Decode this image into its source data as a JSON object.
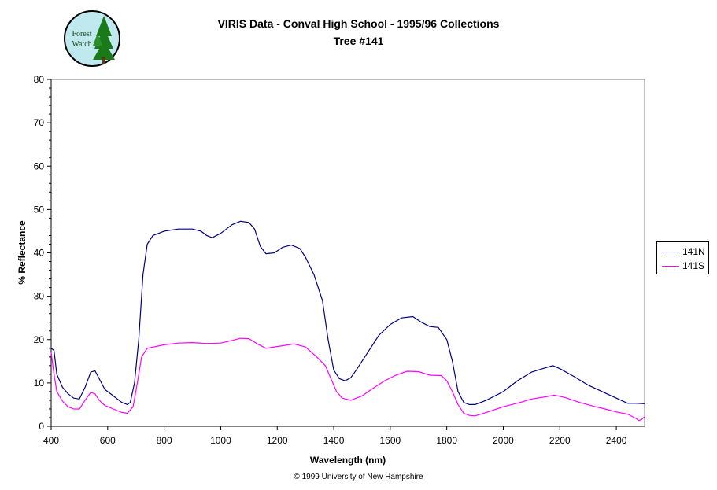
{
  "header": {
    "title_line1": "VIRIS Data - Conval High School - 1995/96 Collections",
    "title_line2": "Tree #141"
  },
  "logo": {
    "text_line1": "Forest",
    "text_line2": "Watch",
    "icon": "tree-icon"
  },
  "footer": {
    "copyright": "© 1999 University of New Hampshire"
  },
  "colors": {
    "series_141N": "#000080",
    "series_141S": "#ff00ff"
  },
  "chart_data": {
    "type": "line",
    "title": "VIRIS Data - Conval High School - 1995/96 Collections",
    "subtitle": "Tree #141",
    "xlabel": "Wavelength (nm)",
    "ylabel": "% Reflectance",
    "xlim": [
      400,
      2500
    ],
    "ylim": [
      0,
      80
    ],
    "xticks": [
      400,
      600,
      800,
      1000,
      1200,
      1400,
      1600,
      1800,
      2000,
      2200,
      2400
    ],
    "yticks": [
      0,
      10,
      20,
      30,
      40,
      50,
      60,
      70,
      80
    ],
    "grid": false,
    "legend_position": "right",
    "series": [
      {
        "name": "141N",
        "color": "#000080",
        "points": [
          [
            400,
            18
          ],
          [
            410,
            17.5
          ],
          [
            420,
            12
          ],
          [
            440,
            9
          ],
          [
            460,
            7.5
          ],
          [
            480,
            6.5
          ],
          [
            500,
            6.3
          ],
          [
            520,
            9
          ],
          [
            540,
            12.5
          ],
          [
            555,
            12.8
          ],
          [
            570,
            11
          ],
          [
            590,
            8.5
          ],
          [
            620,
            7
          ],
          [
            650,
            5.5
          ],
          [
            670,
            5
          ],
          [
            680,
            5.5
          ],
          [
            695,
            10
          ],
          [
            710,
            20
          ],
          [
            725,
            35
          ],
          [
            740,
            42
          ],
          [
            760,
            44
          ],
          [
            800,
            45
          ],
          [
            850,
            45.5
          ],
          [
            900,
            45.5
          ],
          [
            930,
            45
          ],
          [
            950,
            44
          ],
          [
            970,
            43.5
          ],
          [
            1000,
            44.5
          ],
          [
            1040,
            46.5
          ],
          [
            1070,
            47.3
          ],
          [
            1100,
            47
          ],
          [
            1120,
            45.5
          ],
          [
            1140,
            41.5
          ],
          [
            1160,
            39.8
          ],
          [
            1190,
            40
          ],
          [
            1220,
            41.3
          ],
          [
            1250,
            41.8
          ],
          [
            1280,
            41
          ],
          [
            1300,
            39
          ],
          [
            1330,
            35
          ],
          [
            1360,
            29
          ],
          [
            1380,
            20
          ],
          [
            1400,
            13
          ],
          [
            1420,
            11
          ],
          [
            1440,
            10.5
          ],
          [
            1460,
            11.2
          ],
          [
            1480,
            13
          ],
          [
            1520,
            17
          ],
          [
            1560,
            21
          ],
          [
            1600,
            23.5
          ],
          [
            1640,
            25
          ],
          [
            1680,
            25.3
          ],
          [
            1710,
            24
          ],
          [
            1740,
            23
          ],
          [
            1770,
            22.8
          ],
          [
            1800,
            20
          ],
          [
            1820,
            15
          ],
          [
            1840,
            8
          ],
          [
            1860,
            5.5
          ],
          [
            1880,
            5
          ],
          [
            1900,
            5
          ],
          [
            1940,
            6
          ],
          [
            2000,
            8
          ],
          [
            2050,
            10.5
          ],
          [
            2100,
            12.5
          ],
          [
            2150,
            13.5
          ],
          [
            2175,
            14
          ],
          [
            2200,
            13.3
          ],
          [
            2250,
            11.5
          ],
          [
            2300,
            9.5
          ],
          [
            2350,
            8
          ],
          [
            2400,
            6.5
          ],
          [
            2440,
            5.3
          ],
          [
            2470,
            5.3
          ],
          [
            2500,
            5.2
          ]
        ]
      },
      {
        "name": "141S",
        "color": "#ff00ff",
        "points": [
          [
            400,
            17
          ],
          [
            410,
            12
          ],
          [
            420,
            8
          ],
          [
            440,
            5.8
          ],
          [
            460,
            4.5
          ],
          [
            480,
            4
          ],
          [
            500,
            4
          ],
          [
            520,
            6
          ],
          [
            540,
            7.8
          ],
          [
            555,
            7.5
          ],
          [
            570,
            6
          ],
          [
            590,
            4.8
          ],
          [
            620,
            4
          ],
          [
            650,
            3.2
          ],
          [
            670,
            3
          ],
          [
            690,
            4.5
          ],
          [
            705,
            10
          ],
          [
            720,
            16
          ],
          [
            740,
            18
          ],
          [
            800,
            18.8
          ],
          [
            850,
            19.2
          ],
          [
            900,
            19.3
          ],
          [
            950,
            19.1
          ],
          [
            1000,
            19.2
          ],
          [
            1040,
            19.8
          ],
          [
            1070,
            20.3
          ],
          [
            1100,
            20.2
          ],
          [
            1130,
            19
          ],
          [
            1160,
            18
          ],
          [
            1190,
            18.3
          ],
          [
            1220,
            18.6
          ],
          [
            1260,
            19
          ],
          [
            1300,
            18.3
          ],
          [
            1340,
            16
          ],
          [
            1370,
            14
          ],
          [
            1390,
            11
          ],
          [
            1410,
            8
          ],
          [
            1430,
            6.5
          ],
          [
            1460,
            6
          ],
          [
            1500,
            7
          ],
          [
            1540,
            8.8
          ],
          [
            1580,
            10.5
          ],
          [
            1620,
            11.8
          ],
          [
            1660,
            12.7
          ],
          [
            1700,
            12.6
          ],
          [
            1740,
            11.8
          ],
          [
            1780,
            11.7
          ],
          [
            1800,
            10.5
          ],
          [
            1820,
            8
          ],
          [
            1840,
            5
          ],
          [
            1860,
            3
          ],
          [
            1880,
            2.5
          ],
          [
            1900,
            2.4
          ],
          [
            1940,
            3.2
          ],
          [
            2000,
            4.5
          ],
          [
            2060,
            5.5
          ],
          [
            2100,
            6.3
          ],
          [
            2150,
            6.8
          ],
          [
            2180,
            7.2
          ],
          [
            2220,
            6.6
          ],
          [
            2270,
            5.5
          ],
          [
            2320,
            4.6
          ],
          [
            2360,
            4
          ],
          [
            2400,
            3.3
          ],
          [
            2440,
            2.8
          ],
          [
            2470,
            1.8
          ],
          [
            2480,
            1.3
          ],
          [
            2490,
            1.6
          ],
          [
            2500,
            2.2
          ]
        ]
      }
    ]
  }
}
